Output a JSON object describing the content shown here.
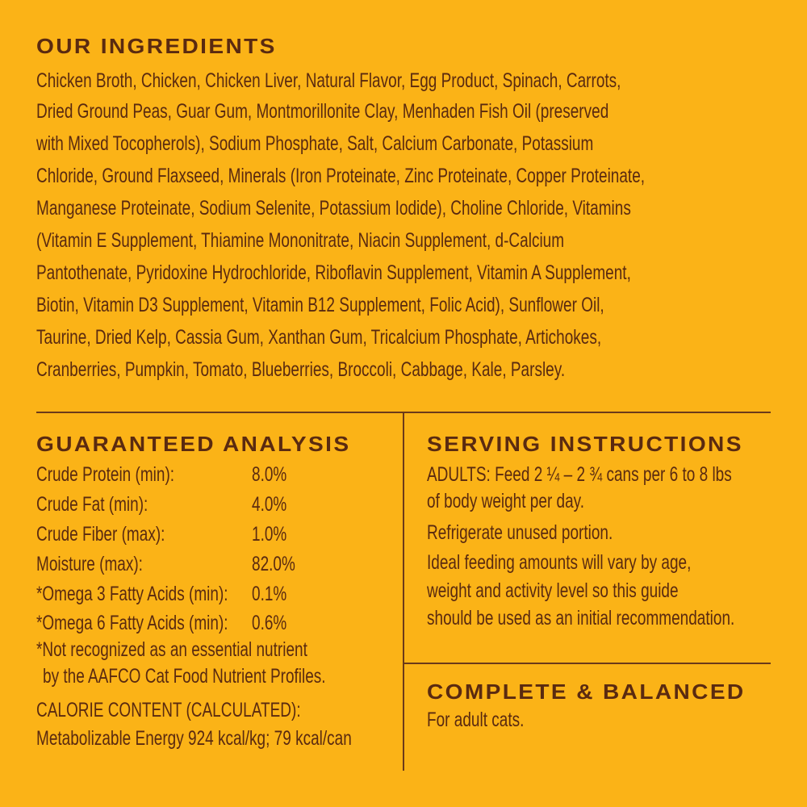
{
  "colors": {
    "background": "#FBB317",
    "text": "#5A2A10"
  },
  "ingredients": {
    "heading": "OUR INGREDIENTS",
    "lines": [
      "Chicken Broth, Chicken, Chicken Liver, Natural Flavor, Egg Product, Spinach, Carrots,",
      "Dried Ground Peas, Guar Gum, Montmorillonite Clay, Menhaden Fish Oil (preserved",
      "with Mixed Tocopherols), Sodium Phosphate, Salt, Calcium Carbonate, Potassium",
      "Chloride, Ground Flaxseed, Minerals (Iron Proteinate, Zinc Proteinate, Copper Proteinate,",
      "Manganese Proteinate, Sodium Selenite, Potassium Iodide), Choline Chloride, Vitamins",
      "(Vitamin E Supplement, Thiamine Mononitrate, Niacin Supplement, d-Calcium",
      "Pantothenate, Pyridoxine Hydrochloride, Riboflavin Supplement, Vitamin A Supplement,",
      "Biotin, Vitamin D3 Supplement, Vitamin B12 Supplement, Folic Acid), Sunflower Oil,",
      "Taurine, Dried Kelp, Cassia Gum, Xanthan Gum, Tricalcium Phosphate, Artichokes,",
      "Cranberries, Pumpkin, Tomato, Blueberries, Broccoli, Cabbage, Kale, Parsley."
    ]
  },
  "analysis": {
    "heading": "GUARANTEED ANALYSIS",
    "rows": [
      {
        "label": "Crude Protein (min):",
        "value": "8.0%"
      },
      {
        "label": "Crude Fat (min):",
        "value": "4.0%"
      },
      {
        "label": "Crude Fiber (max):",
        "value": "1.0%"
      },
      {
        "label": "Moisture (max):",
        "value": "82.0%"
      },
      {
        "label": "*Omega 3 Fatty Acids (min):",
        "value": "0.1%"
      },
      {
        "label": "*Omega 6 Fatty Acids (min):",
        "value": "0.6%"
      }
    ],
    "footnote": [
      "*Not recognized as an essential nutrient",
      "by the AAFCO Cat Food Nutrient Profiles."
    ],
    "calorie": [
      "CALORIE CONTENT (CALCULATED):",
      "Metabolizable Energy 924 kcal/kg; 79 kcal/can"
    ]
  },
  "serving": {
    "heading": "SERVING INSTRUCTIONS",
    "lines": [
      "ADULTS: Feed 2 ¼ – 2 ¾  cans per 6 to 8 lbs",
      "of body weight per day.",
      "Refrigerate unused portion.",
      "Ideal feeding amounts will vary by age,",
      "weight and activity level so this guide",
      "should be used as an initial recommendation."
    ]
  },
  "complete": {
    "heading": "COMPLETE & BALANCED",
    "text": "For adult cats."
  }
}
